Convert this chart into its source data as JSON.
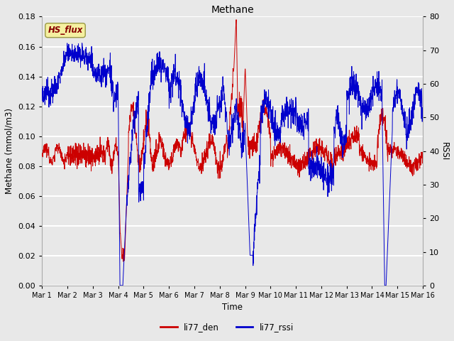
{
  "title": "Methane",
  "ylabel_left": "Methane (mmol/m3)",
  "ylabel_right": "RSSI",
  "xlabel": "Time",
  "ylim_left": [
    0.0,
    0.18
  ],
  "ylim_right": [
    0,
    80
  ],
  "yticks_left": [
    0.0,
    0.02,
    0.04,
    0.06,
    0.08,
    0.1,
    0.12,
    0.14,
    0.16,
    0.18
  ],
  "yticks_right": [
    0,
    10,
    20,
    30,
    40,
    50,
    60,
    70,
    80
  ],
  "xtick_labels": [
    "Mar 1",
    "Mar 2",
    "Mar 3",
    "Mar 4",
    "Mar 5",
    "Mar 6",
    "Mar 7",
    "Mar 8",
    "Mar 9",
    "Mar 10",
    "Mar 11",
    "Mar 12",
    "Mar 13",
    "Mar 14",
    "Mar 15",
    "Mar 16"
  ],
  "line_red_label": "li77_den",
  "line_blue_label": "li77_rssi",
  "color_red": "#cc0000",
  "color_blue": "#0000cc",
  "box_label": "HS_flux",
  "box_facecolor": "#f5f0a0",
  "box_edgecolor": "#999944",
  "box_textcolor": "#880000",
  "bg_color": "#e8e8e8",
  "plot_bg": "#e8e8e8",
  "grid_color": "white",
  "n_points": 2000
}
